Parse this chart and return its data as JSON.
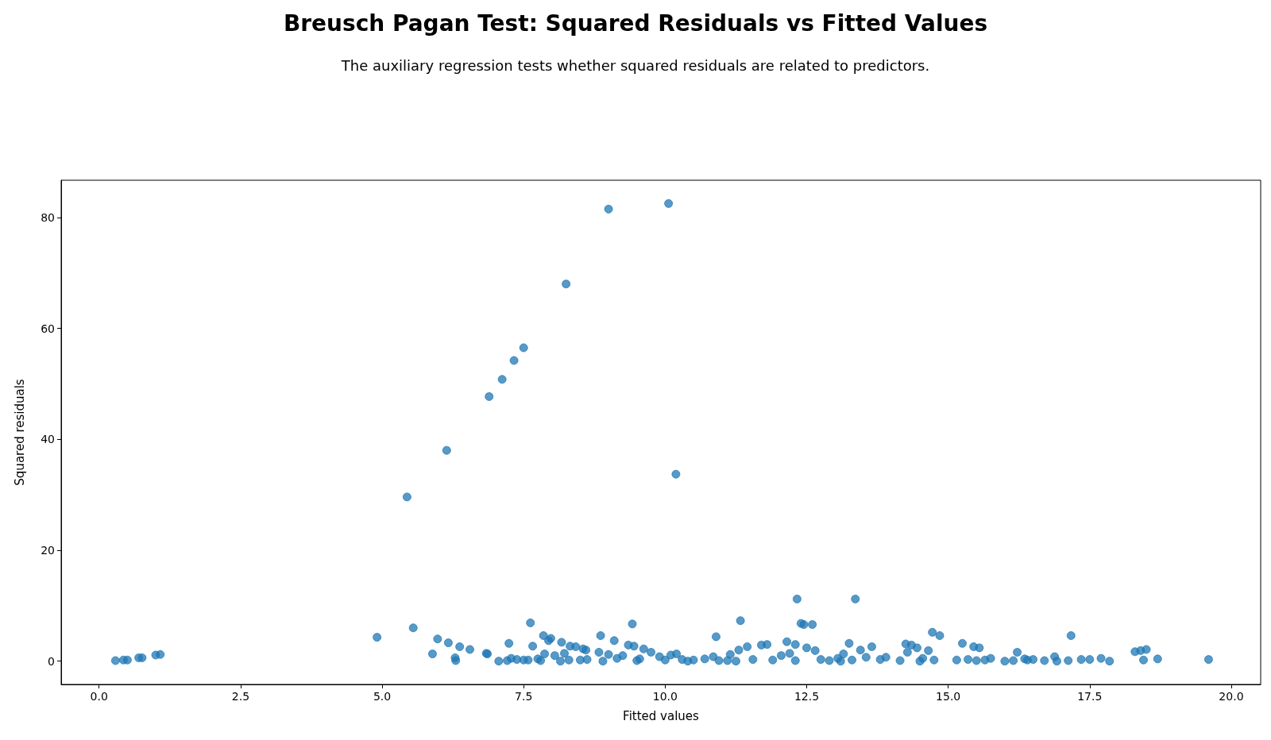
{
  "chart_data": {
    "type": "scatter",
    "title": "Breusch Pagan Test: Squared Residuals vs Fitted Values",
    "subtitle": "The auxiliary regression tests whether squared residuals are related to predictors.",
    "xlabel": "Fitted values",
    "ylabel": "Squared residuals",
    "series": [
      {
        "color": "#1f77b4",
        "x": [
          5.44,
          6.14,
          6.89,
          7.12,
          7.33,
          7.5,
          8.25,
          9.0,
          10.06,
          10.19,
          12.33,
          13.36,
          0.29,
          0.43,
          0.5,
          0.7,
          0.76,
          1.0,
          1.08,
          4.91,
          5.55,
          5.89,
          5.98,
          6.17,
          6.29,
          6.3,
          6.37,
          6.55,
          6.84,
          6.86,
          7.06,
          7.21,
          7.24,
          7.28,
          7.38,
          7.5,
          7.58,
          7.62,
          7.66,
          7.75,
          7.8,
          7.85,
          7.87,
          7.94,
          7.98,
          8.05,
          8.15,
          8.17,
          8.22,
          8.3,
          8.32,
          8.42,
          8.5,
          8.55,
          8.6,
          8.62,
          8.83,
          8.86,
          8.9,
          9.0,
          9.1,
          9.15,
          9.25,
          9.35,
          9.42,
          9.45,
          9.55,
          9.62,
          9.75,
          9.9,
          10.0,
          10.1,
          10.2,
          10.3,
          10.5,
          10.7,
          10.85,
          10.9,
          10.95,
          11.15,
          11.25,
          11.3,
          11.33,
          11.45,
          11.55,
          11.7,
          11.8,
          11.9,
          12.05,
          12.15,
          12.2,
          12.3,
          12.4,
          12.45,
          12.5,
          12.6,
          12.65,
          12.75,
          12.9,
          13.05,
          13.15,
          13.25,
          13.3,
          13.45,
          13.55,
          13.65,
          13.8,
          13.9,
          14.15,
          14.25,
          14.28,
          14.35,
          14.45,
          14.55,
          14.65,
          14.72,
          14.85,
          14.75,
          15.15,
          15.25,
          15.35,
          15.45,
          15.55,
          15.65,
          15.75,
          16.0,
          16.15,
          16.22,
          16.35,
          16.5,
          16.7,
          16.88,
          16.92,
          17.12,
          17.17,
          17.35,
          17.5,
          17.7,
          17.85,
          18.3,
          18.4,
          18.5,
          18.45,
          18.7,
          19.6,
          9.5,
          10.4,
          11.1,
          12.3,
          13.1,
          14.5,
          15.5,
          16.4
        ],
        "values": [
          29.6,
          38.0,
          47.7,
          50.8,
          54.2,
          56.5,
          68.0,
          81.5,
          82.5,
          33.7,
          11.2,
          11.2,
          0.1,
          0.2,
          0.2,
          0.6,
          0.6,
          1.1,
          1.2,
          4.3,
          6.0,
          1.3,
          4.0,
          3.3,
          0.6,
          0.1,
          2.6,
          2.1,
          1.4,
          1.3,
          0.0,
          0.1,
          3.2,
          0.5,
          0.3,
          0.2,
          0.2,
          6.9,
          2.7,
          0.4,
          0.1,
          4.6,
          1.3,
          3.7,
          4.1,
          1.0,
          0.0,
          3.4,
          1.4,
          0.2,
          2.7,
          2.6,
          0.2,
          2.2,
          2.0,
          0.3,
          1.6,
          4.6,
          0.0,
          1.2,
          3.7,
          0.5,
          1.0,
          2.9,
          6.7,
          2.7,
          0.4,
          2.2,
          1.6,
          0.8,
          0.2,
          1.1,
          1.3,
          0.3,
          0.2,
          0.4,
          0.8,
          4.4,
          0.1,
          1.2,
          0.0,
          2.0,
          7.3,
          2.6,
          0.3,
          2.9,
          3.0,
          0.2,
          1.0,
          3.5,
          1.4,
          3.0,
          6.8,
          6.6,
          2.4,
          6.6,
          1.9,
          0.3,
          0.1,
          0.5,
          1.3,
          3.2,
          0.2,
          2.0,
          0.7,
          2.6,
          0.3,
          0.7,
          0.1,
          3.1,
          1.6,
          2.9,
          2.4,
          0.5,
          1.9,
          5.2,
          4.6,
          0.2,
          0.2,
          3.2,
          0.3,
          2.6,
          2.4,
          0.2,
          0.5,
          0.0,
          0.1,
          1.6,
          0.4,
          0.3,
          0.1,
          0.8,
          0.0,
          0.1,
          4.6,
          0.3,
          0.3,
          0.5,
          0.0,
          1.7,
          1.9,
          2.1,
          0.2,
          0.4,
          0.3,
          0.1,
          0.0,
          0.1,
          0.1,
          0.0,
          0.0,
          0.1,
          0.2
        ]
      }
    ],
    "xlim": [
      -0.67,
      20.52
    ],
    "ylim": [
      -4.2,
      86.7
    ],
    "xticks": [
      {
        "value": 0,
        "label": "0.0"
      },
      2.5,
      {
        "value": 5,
        "label": "5.0"
      },
      7.5,
      {
        "value": 10,
        "label": "10.0"
      },
      12.5,
      {
        "value": 15,
        "label": "15.0"
      },
      17.5,
      {
        "value": 20,
        "label": "20.0"
      }
    ],
    "yticks": [
      0,
      20,
      40,
      60,
      80
    ],
    "marker": "circle",
    "grid": false
  }
}
